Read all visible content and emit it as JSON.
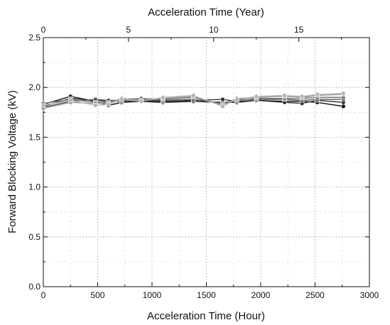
{
  "chart_data": {
    "type": "line",
    "title": "",
    "xlabel": "Acceleration Time (Hour)",
    "ylabel": "Forward Blocking Voltage (kV)",
    "x2label": "Acceleration Time (Year)",
    "xlim": [
      0,
      3000
    ],
    "ylim": [
      0,
      2.5
    ],
    "x2lim": [
      0,
      19.14
    ],
    "x_ticks": [
      "0",
      "500",
      "1000",
      "1500",
      "2000",
      "2500",
      "3000"
    ],
    "y_ticks": [
      "0.0",
      "0.5",
      "1.0",
      "1.5",
      "2.0",
      "2.5"
    ],
    "x2_ticks": [
      "0",
      "5",
      "10",
      "15"
    ],
    "grid": true,
    "x": [
      0,
      250,
      480,
      600,
      720,
      900,
      1100,
      1380,
      1650,
      1780,
      1960,
      2220,
      2380,
      2520,
      2760
    ],
    "series": [
      {
        "color": "#111111",
        "values": [
          1.83,
          1.91,
          1.86,
          1.82,
          1.85,
          1.86,
          1.85,
          1.86,
          1.85,
          1.85,
          1.87,
          1.86,
          1.86,
          1.85,
          1.81
        ]
      },
      {
        "color": "#333333",
        "values": [
          1.81,
          1.89,
          1.87,
          1.86,
          1.86,
          1.87,
          1.86,
          1.87,
          1.88,
          1.86,
          1.87,
          1.85,
          1.84,
          1.87,
          1.85
        ]
      },
      {
        "color": "#555555",
        "values": [
          1.8,
          1.86,
          1.88,
          1.87,
          1.87,
          1.88,
          1.87,
          1.88,
          1.84,
          1.88,
          1.88,
          1.88,
          1.87,
          1.88,
          1.88
        ]
      },
      {
        "color": "#777777",
        "values": [
          1.84,
          1.88,
          1.85,
          1.85,
          1.88,
          1.89,
          1.88,
          1.9,
          1.83,
          1.87,
          1.89,
          1.89,
          1.89,
          1.9,
          1.9
        ]
      },
      {
        "color": "#999999",
        "values": [
          1.79,
          1.85,
          1.84,
          1.84,
          1.89,
          1.87,
          1.89,
          1.91,
          1.82,
          1.89,
          1.9,
          1.91,
          1.9,
          1.92,
          1.93
        ]
      },
      {
        "color": "#b5b5b5",
        "values": [
          1.82,
          1.87,
          1.82,
          1.83,
          1.88,
          1.86,
          1.9,
          1.92,
          1.81,
          1.88,
          1.91,
          1.92,
          1.91,
          1.93,
          1.94
        ]
      }
    ]
  }
}
